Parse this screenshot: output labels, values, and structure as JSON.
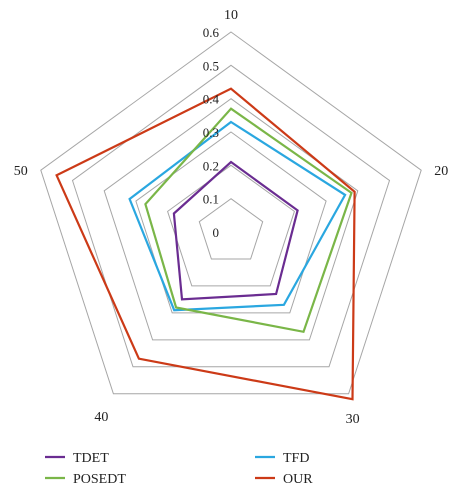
{
  "chart_data": {
    "type": "radar",
    "categories": [
      "10",
      "20",
      "30",
      "40",
      "50"
    ],
    "radial_ticks": [
      "0",
      "0.1",
      "0.2",
      "0.3",
      "0.4",
      "0.5",
      "0.6"
    ],
    "rlim": [
      0,
      0.6
    ],
    "grid": true,
    "legend_position": "bottom",
    "series": [
      {
        "name": "TDET",
        "color": "#6a2c91",
        "values": [
          0.21,
          0.21,
          0.23,
          0.25,
          0.18
        ]
      },
      {
        "name": "TFD",
        "color": "#2aa7e0",
        "values": [
          0.33,
          0.36,
          0.27,
          0.29,
          0.32
        ]
      },
      {
        "name": "POSEDT",
        "color": "#7ab648",
        "values": [
          0.37,
          0.38,
          0.37,
          0.28,
          0.27
        ]
      },
      {
        "name": "OUR",
        "color": "#cc3a17",
        "values": [
          0.43,
          0.39,
          0.62,
          0.47,
          0.55
        ]
      }
    ]
  }
}
